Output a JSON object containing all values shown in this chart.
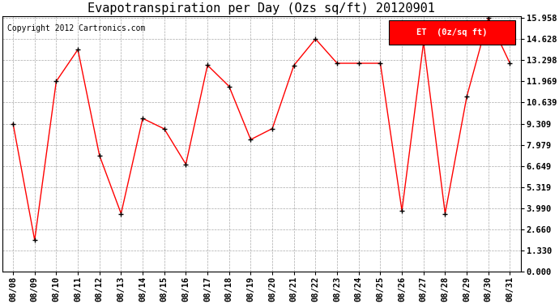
{
  "title": "Evapotranspiration per Day (Ozs sq/ft) 20120901",
  "copyright": "Copyright 2012 Cartronics.com",
  "legend_label": "ET  (0z/sq ft)",
  "dates": [
    "08/08",
    "08/09",
    "08/10",
    "08/11",
    "08/12",
    "08/13",
    "08/14",
    "08/15",
    "08/16",
    "08/17",
    "08/18",
    "08/19",
    "08/20",
    "08/21",
    "08/22",
    "08/23",
    "08/24",
    "08/25",
    "08/26",
    "08/27",
    "08/28",
    "08/29",
    "08/30",
    "08/31"
  ],
  "values": [
    9.309,
    1.995,
    11.969,
    13.96,
    7.31,
    3.66,
    9.64,
    8.98,
    6.76,
    12.98,
    11.65,
    8.31,
    9.0,
    12.97,
    14.628,
    13.1,
    13.1,
    13.1,
    3.84,
    14.4,
    3.66,
    11.0,
    15.958,
    13.1
  ],
  "yticks": [
    0.0,
    1.33,
    2.66,
    3.99,
    5.319,
    6.649,
    7.979,
    9.309,
    10.639,
    11.969,
    13.298,
    14.628,
    15.958
  ],
  "line_color": "red",
  "marker_color": "black",
  "bg_color": "#ffffff",
  "plot_bg_color": "#ffffff",
  "grid_color": "#aaaaaa",
  "legend_bg": "red",
  "legend_text_color": "white",
  "title_fontsize": 11,
  "copyright_fontsize": 7,
  "tick_fontsize": 7.5,
  "ylim": [
    0.0,
    15.958
  ],
  "ylabel_right": true
}
